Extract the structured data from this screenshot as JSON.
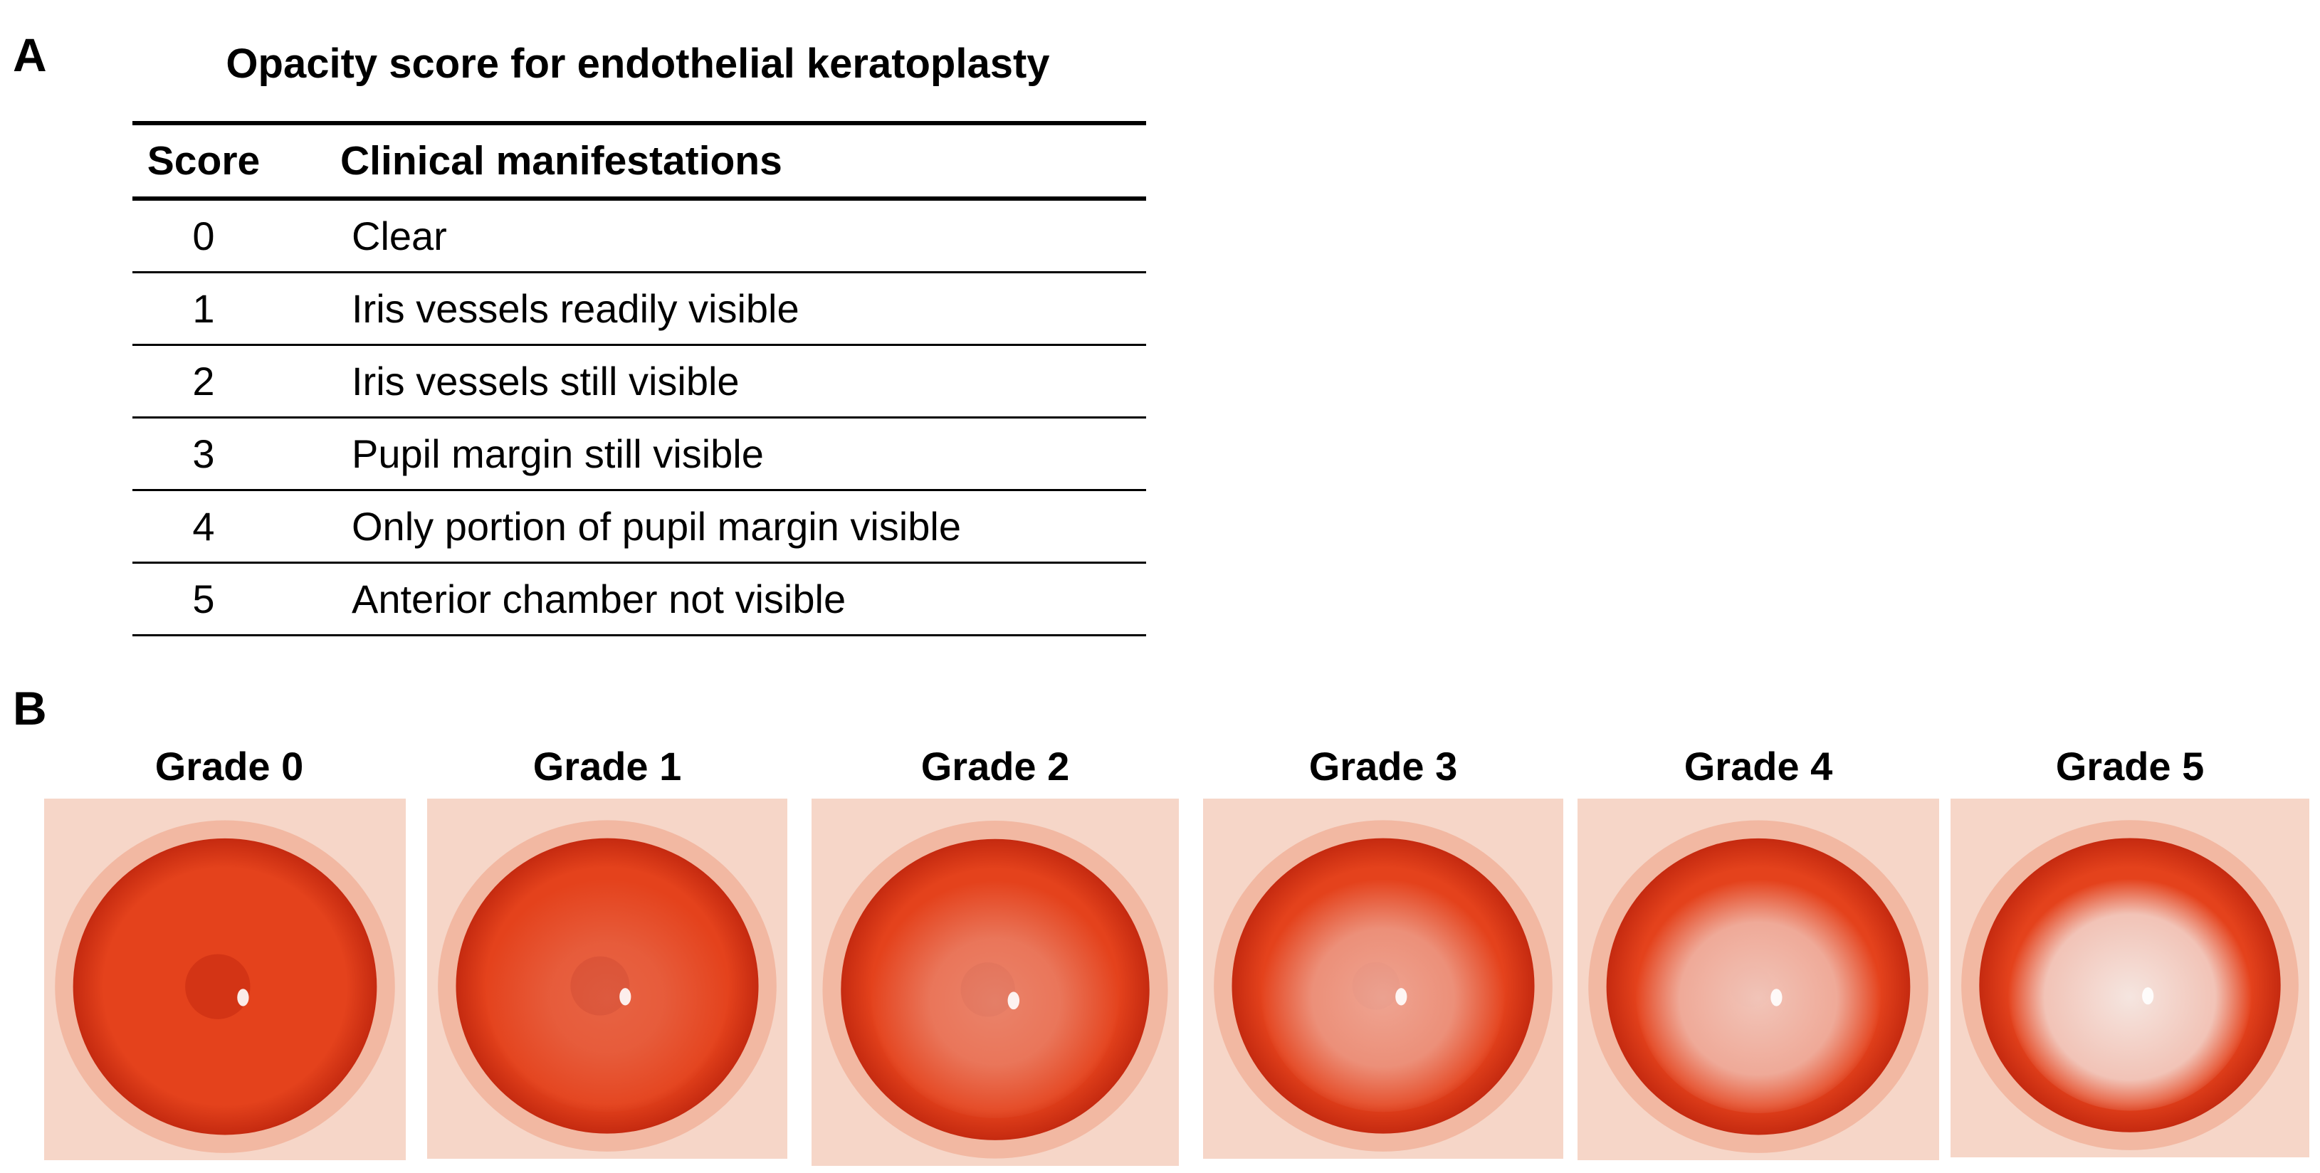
{
  "panel_a": {
    "label": "A",
    "title": "Opacity score for endothelial keratoplasty",
    "columns": [
      "Score",
      "Clinical manifestations"
    ],
    "rows": [
      {
        "score": "0",
        "text": "Clear"
      },
      {
        "score": "1",
        "text": "Iris vessels readily visible"
      },
      {
        "score": "2",
        "text": "Iris vessels still visible"
      },
      {
        "score": "3",
        "text": "Pupil margin still visible"
      },
      {
        "score": "4",
        "text": "Only portion of pupil margin visible"
      },
      {
        "score": "5",
        "text": "Anterior chamber not visible"
      }
    ]
  },
  "panel_b": {
    "label": "B",
    "grades": [
      {
        "label": "Grade 0",
        "opacity": 0.0
      },
      {
        "label": "Grade 1",
        "opacity": 0.2
      },
      {
        "label": "Grade 2",
        "opacity": 0.4
      },
      {
        "label": "Grade 3",
        "opacity": 0.6
      },
      {
        "label": "Grade 4",
        "opacity": 0.8
      },
      {
        "label": "Grade 5",
        "opacity": 1.0
      }
    ]
  },
  "colors": {
    "iris": "#e4421c",
    "iris_dark": "#c52a10",
    "limbus": "#f2b8a2",
    "surround": "#f6d6c8",
    "opacity_haze": "#f6eeea"
  }
}
